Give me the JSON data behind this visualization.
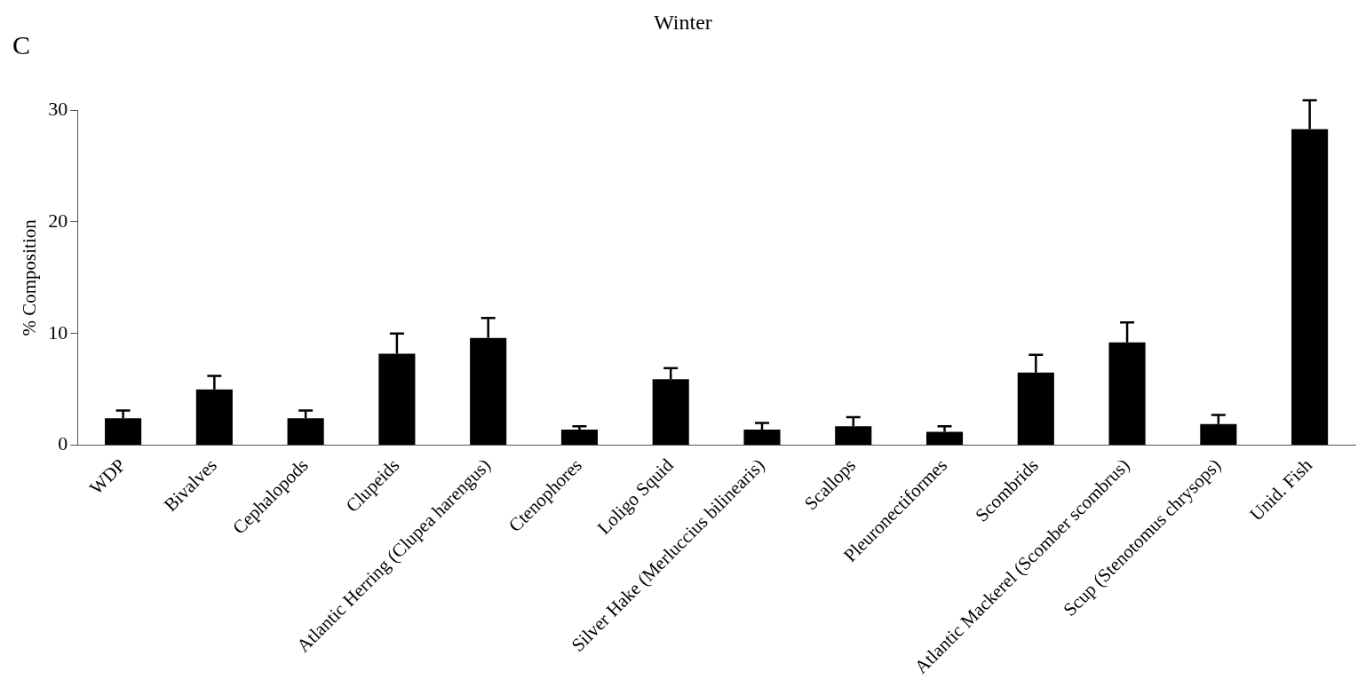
{
  "chart_data": {
    "type": "bar",
    "title": "Winter",
    "ylabel": "% Composition",
    "annotations": [
      "C"
    ],
    "categories": [
      "WDP",
      "Bivalves",
      "Cephalopods",
      "Clupeids",
      "Atlantic Herring (Clupea harengus)",
      "Ctenophores",
      "Loligo Squid",
      "Silver Hake (Merluccius bilinearis)",
      "Scallops",
      "Pleuronectiformes",
      "Scombrids",
      "Atlantic Mackerel (Scomber scombrus)",
      "Scup (Stenotomus chrysops)",
      "Unid. Fish"
    ],
    "values": [
      2.4,
      5.0,
      2.4,
      8.2,
      9.6,
      1.4,
      5.9,
      1.4,
      1.7,
      1.2,
      6.5,
      9.2,
      1.9,
      28.3
    ],
    "errors": [
      0.7,
      1.2,
      0.7,
      1.8,
      1.8,
      0.3,
      1.0,
      0.6,
      0.8,
      0.5,
      1.6,
      1.8,
      0.8,
      2.6
    ],
    "color": "#000000",
    "ylim": [
      0,
      30
    ],
    "yticks": [
      0,
      10,
      20,
      30
    ],
    "grid": false,
    "legend": false
  }
}
